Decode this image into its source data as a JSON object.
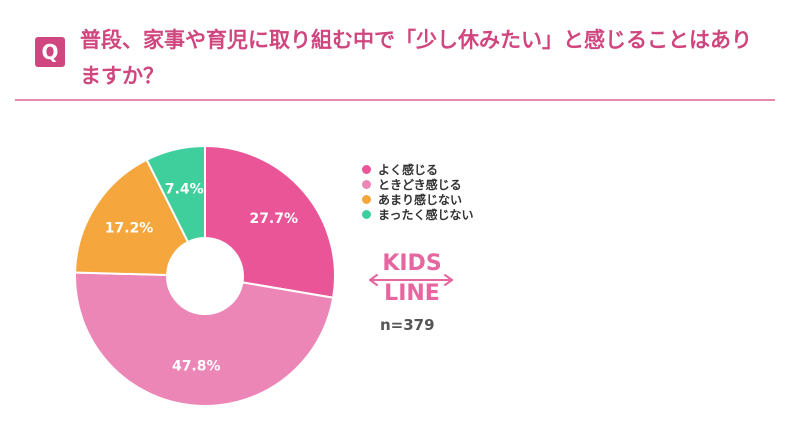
{
  "question": {
    "badge": "Q",
    "text": "普段、家事や育児に取り組む中で「少し休みたい」と感じることはありますか？"
  },
  "colors": {
    "accent": "#d0467f",
    "divider": "#e58aac",
    "slice_often": "#ea5598",
    "slice_sometimes": "#ec86b7",
    "slice_rarely": "#f5a63c",
    "slice_never": "#3fcf9c",
    "logo": "#e6669f"
  },
  "logo": {
    "line1": "KIDS",
    "line2": "LINE"
  },
  "sample_size": "n=379",
  "chart_data": {
    "type": "pie",
    "donut": true,
    "title": "",
    "legend_position": "right",
    "slices": [
      {
        "label": "よく感じる",
        "value": 27.7,
        "display": "27.7%",
        "color": "#ea5598"
      },
      {
        "label": "ときどき感じる",
        "value": 47.8,
        "display": "47.8%",
        "color": "#ec86b7"
      },
      {
        "label": "あまり感じない",
        "value": 17.2,
        "display": "17.2%",
        "color": "#f5a63c"
      },
      {
        "label": "まったく感じない",
        "value": 7.4,
        "display": "7.4%",
        "color": "#3fcf9c"
      }
    ]
  }
}
